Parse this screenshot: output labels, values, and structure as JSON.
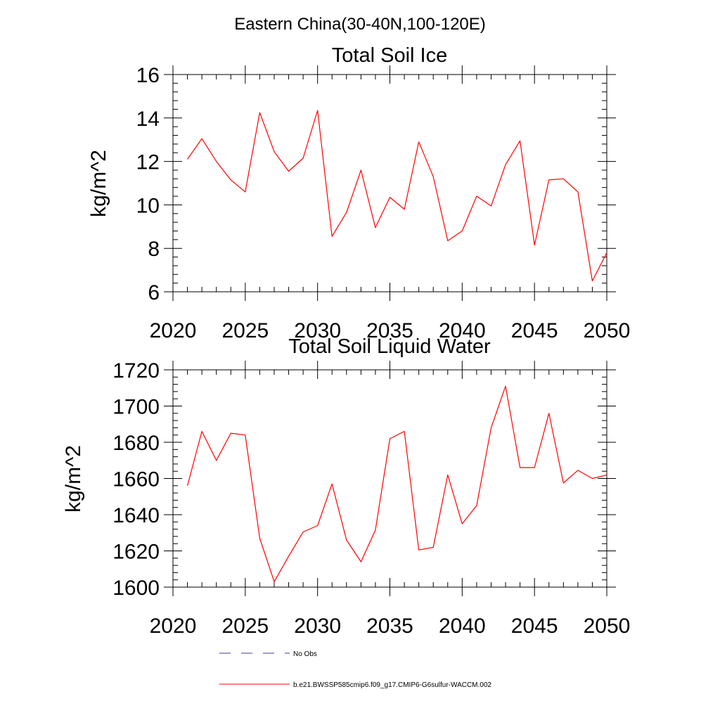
{
  "figure": {
    "title": "Eastern China(30-40N,100-120E)"
  },
  "chart_data": [
    {
      "type": "line",
      "title": "Total Soil Ice",
      "xlabel": "",
      "ylabel": "kg/m^2",
      "xlim": [
        2020,
        2050
      ],
      "ylim": [
        6,
        16
      ],
      "xticks": [
        2020,
        2025,
        2030,
        2035,
        2040,
        2045,
        2050
      ],
      "yticks": [
        6,
        8,
        10,
        12,
        14,
        16
      ],
      "ytick_minor_step": 0.4,
      "xtick_minor_step": 1,
      "grid": false,
      "series": [
        {
          "color": "#ff0000",
          "x": [
            2021,
            2022,
            2023,
            2024,
            2025,
            2026,
            2027,
            2028,
            2029,
            2030,
            2031,
            2032,
            2033,
            2034,
            2035,
            2036,
            2037,
            2038,
            2039,
            2040,
            2041,
            2042,
            2043,
            2044,
            2045,
            2046,
            2047,
            2048,
            2049,
            2050
          ],
          "values": [
            12.1,
            13.05,
            12.0,
            11.15,
            10.6,
            14.25,
            12.45,
            11.55,
            12.15,
            14.35,
            8.55,
            9.65,
            11.6,
            8.95,
            10.35,
            9.8,
            12.9,
            11.3,
            8.35,
            8.8,
            10.4,
            9.95,
            11.85,
            12.95,
            8.15,
            11.15,
            11.2,
            10.6,
            6.5,
            7.8
          ]
        }
      ]
    },
    {
      "type": "line",
      "title": "Total Soil Liquid Water",
      "xlabel": "",
      "ylabel": "kg/m^2",
      "xlim": [
        2020,
        2050
      ],
      "ylim": [
        1600,
        1720
      ],
      "xticks": [
        2020,
        2025,
        2030,
        2035,
        2040,
        2045,
        2050
      ],
      "yticks": [
        1600,
        1620,
        1640,
        1660,
        1680,
        1700,
        1720
      ],
      "ytick_minor_step": 4,
      "xtick_minor_step": 1,
      "grid": false,
      "series": [
        {
          "color": "#ff0000",
          "x": [
            2021,
            2022,
            2023,
            2024,
            2025,
            2026,
            2027,
            2028,
            2029,
            2030,
            2031,
            2032,
            2033,
            2034,
            2035,
            2036,
            2037,
            2038,
            2039,
            2040,
            2041,
            2042,
            2043,
            2044,
            2045,
            2046,
            2047,
            2048,
            2049,
            2050
          ],
          "values": [
            1656,
            1686,
            1670,
            1685,
            1684,
            1627,
            1603,
            1617,
            1630.5,
            1634,
            1657,
            1626,
            1614,
            1631.5,
            1682,
            1686,
            1620.5,
            1622,
            1662,
            1635,
            1645,
            1688,
            1711,
            1666,
            1666,
            1696,
            1657.5,
            1664.5,
            1660,
            1662
          ]
        }
      ]
    }
  ],
  "legend": {
    "position": "bottom",
    "entries": [
      {
        "label": "No Obs",
        "color": "#3c3c8c",
        "style": "dashed"
      },
      {
        "label": "b.e21.BWSSP585cmip6.f09_g17.CMIP6-G6sulfur-WACCM.002",
        "color": "#ff0000",
        "style": "solid"
      }
    ]
  }
}
